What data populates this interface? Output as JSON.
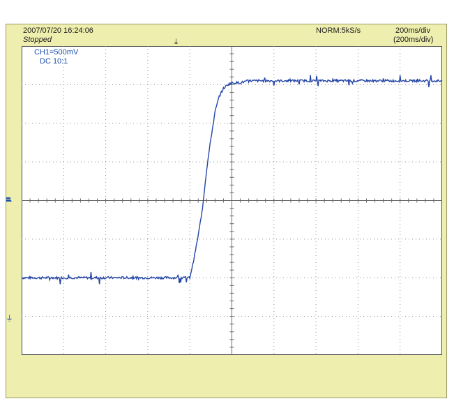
{
  "header": {
    "datetime": "2007/07/20  16:24:06",
    "status": "Stopped",
    "trigger_mode": "NORM:5kS/s",
    "timebase": "200ms/div",
    "timebase_zoom": "(200ms/div)"
  },
  "channel": {
    "scale": "CH1=500mV",
    "coupling": "DC  10:1"
  },
  "markers": {
    "trigger_position_icon": "trigger-position-marker",
    "trigger_level_icon": "trigger-level-marker",
    "ground_icon": "channel-ground-marker"
  },
  "colors": {
    "trace": "#2445a8",
    "frame": "#eeeeae",
    "grid": "#8a8a8a"
  },
  "chart_data": {
    "type": "line",
    "title": "",
    "xlabel": "",
    "ylabel": "",
    "x_divisions": 10,
    "y_divisions": 8,
    "xlim": [
      0,
      10
    ],
    "ylim": [
      -4,
      4
    ],
    "grid": true,
    "series": [
      {
        "x": [
          0,
          4.0,
          4.1,
          4.2,
          4.3,
          4.4,
          4.5,
          4.6,
          4.7,
          4.8,
          4.9,
          5.0,
          5.2,
          5.4,
          6.0,
          10
        ],
        "y": [
          -2.0,
          -2.0,
          -1.5,
          -0.9,
          -0.2,
          0.8,
          1.6,
          2.3,
          2.7,
          2.9,
          3.0,
          3.05,
          3.05,
          3.1,
          3.1,
          3.1
        ]
      }
    ]
  }
}
